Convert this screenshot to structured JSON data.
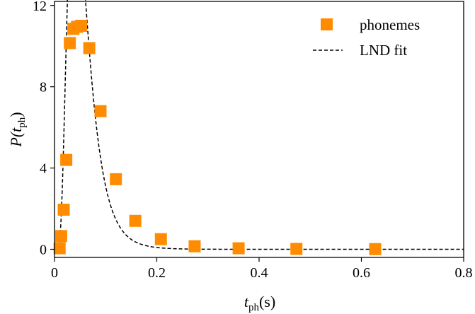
{
  "chart_data": {
    "type": "scatter",
    "x_axis": {
      "label_main": "t",
      "label_sub": "ph",
      "label_unit": "(s)",
      "lim": [
        0,
        0.8
      ],
      "ticks": [
        0,
        0.2,
        0.4,
        0.6,
        0.8
      ],
      "tick_labels": [
        "0",
        "0.2",
        "0.4",
        "0.6",
        "0.8"
      ]
    },
    "y_axis": {
      "label_main": "P(t",
      "label_sub": "ph",
      "label_close": ")",
      "lim": [
        -0.4,
        12.2
      ],
      "ticks": [
        0,
        4,
        8,
        12
      ],
      "tick_labels": [
        "0",
        "4",
        "8",
        "12"
      ]
    },
    "grid": false,
    "legend": {
      "placement": "top-right",
      "entries": [
        {
          "label": "phonemes",
          "marker": "square",
          "color": "#ff8c00"
        },
        {
          "label": "LND fit",
          "marker": "dashed-line",
          "color": "#000000"
        }
      ]
    },
    "series": [
      {
        "name": "phonemes",
        "kind": "scatter",
        "color": "#ff8c00",
        "x": [
          0.01,
          0.013,
          0.018,
          0.023,
          0.03,
          0.037,
          0.044,
          0.052,
          0.068,
          0.09,
          0.12,
          0.158,
          0.208,
          0.274,
          0.36,
          0.473,
          0.627
        ],
        "y": [
          0.05,
          0.65,
          1.95,
          4.4,
          10.15,
          10.85,
          10.95,
          11.0,
          9.9,
          6.8,
          3.45,
          1.4,
          0.5,
          0.15,
          0.05,
          0.02,
          0.01
        ]
      },
      {
        "name": "LND fit",
        "kind": "line",
        "style": "dashed",
        "color": "#000000",
        "params": {
          "mu": -2.99,
          "sigma": 0.5
        }
      }
    ]
  }
}
